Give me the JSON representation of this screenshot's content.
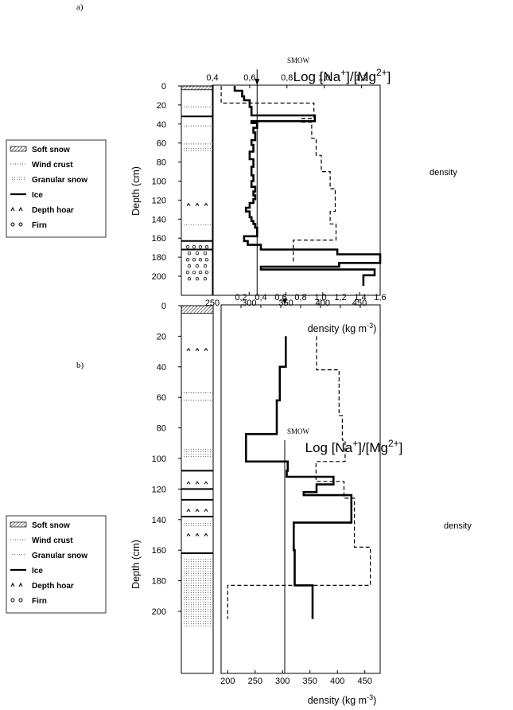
{
  "chart_data": [
    {
      "type": "line",
      "panel_label": "a)",
      "title_top": "Log [Na+]/[Mg2+]",
      "title_parts": {
        "a": "Log [Na",
        "b": "+",
        "c": "]/[Mg",
        "d": "2+",
        "e": "]"
      },
      "xlabel_bottom": {
        "a": "density (kg m",
        "b": "-3",
        "c": ")"
      },
      "ylabel": "Depth (cm)",
      "smow_label": "SMOW",
      "smow_value": 0.64,
      "top_axis": {
        "min": 0.4,
        "max": 1.3,
        "ticks": [
          "0,4",
          "0,6",
          "0,8",
          "1,0",
          "1,2"
        ],
        "tick_values": [
          0.4,
          0.6,
          0.8,
          1.0,
          1.2
        ]
      },
      "bottom_axis": {
        "min": 250,
        "max": 478,
        "ticks": [
          "250",
          "300",
          "350",
          "400",
          "450"
        ],
        "tick_values": [
          250,
          300,
          350,
          400,
          450
        ]
      },
      "y_axis": {
        "min": 0,
        "max": 210,
        "ticks": [
          "0",
          "20",
          "40",
          "60",
          "80",
          "100",
          "120",
          "140",
          "160",
          "180",
          "200"
        ],
        "tick_values": [
          0,
          20,
          40,
          60,
          80,
          100,
          120,
          140,
          160,
          180,
          200
        ]
      },
      "series": [
        {
          "label": "",
          "style": "solid",
          "axis": "top",
          "x": [
            0.52,
            0.52,
            0.56,
            0.56,
            0.57,
            0.57,
            0.6,
            0.6,
            0.61,
            0.61,
            0.95,
            0.95,
            0.61,
            0.61,
            0.64,
            0.64,
            0.62,
            0.62,
            0.63,
            0.63,
            0.61,
            0.61,
            0.62,
            0.62,
            0.6,
            0.6,
            0.62,
            0.62,
            0.61,
            0.61,
            0.62,
            0.62,
            0.61,
            0.61,
            0.63,
            0.63,
            0.62,
            0.62,
            0.63,
            0.63,
            0.62,
            0.62,
            0.6,
            0.6,
            0.58,
            0.58,
            0.6,
            0.6,
            0.61,
            0.61,
            0.62,
            0.62,
            0.63,
            0.63,
            0.64,
            0.64,
            0.57,
            0.57,
            0.59,
            0.59,
            0.66,
            0.66,
            1.07,
            1.07,
            1.3,
            1.3,
            1.08,
            1.08,
            0.66,
            0.66,
            1.27,
            1.27,
            1.21,
            1.21
          ],
          "y": [
            0,
            5,
            5,
            11,
            11,
            15,
            15,
            22,
            22,
            31,
            31,
            37,
            37,
            39,
            39,
            44,
            44,
            49,
            49,
            57,
            57,
            62,
            62,
            69,
            69,
            77,
            77,
            85,
            85,
            94,
            94,
            100,
            100,
            106,
            106,
            111,
            111,
            115,
            115,
            119,
            119,
            123,
            123,
            128,
            128,
            132,
            132,
            138,
            138,
            142,
            142,
            145,
            145,
            149,
            149,
            158,
            158,
            163,
            163,
            167,
            167,
            172,
            172,
            177,
            177,
            186,
            186,
            190,
            190,
            193,
            193,
            199,
            199,
            210
          ]
        },
        {
          "label": "density",
          "style": "dashed",
          "axis": "bottom",
          "x": [
            262,
            262,
            388,
            388,
            372,
            372,
            385,
            385,
            391,
            391,
            398,
            398,
            410,
            410,
            417,
            417,
            410,
            410,
            418,
            418,
            360,
            360
          ],
          "y": [
            0,
            18,
            18,
            34,
            34,
            38,
            38,
            55,
            55,
            73,
            73,
            90,
            90,
            108,
            108,
            132,
            132,
            145,
            145,
            162,
            162,
            185
          ]
        }
      ],
      "density_label": "density",
      "legend": [
        {
          "label": "Soft snow",
          "symbol": "hatch"
        },
        {
          "label": "Wind crust",
          "symbol": "dotted-line"
        },
        {
          "label": "Granular snow",
          "symbol": "stipple"
        },
        {
          "label": "Ice",
          "symbol": "thick-line"
        },
        {
          "label": "Depth hoar",
          "symbol": "carets"
        },
        {
          "label": "Firn",
          "symbol": "circles"
        }
      ],
      "stratigraphy": [
        {
          "type": "hatch",
          "y": [
            0,
            4
          ]
        },
        {
          "type": "dotted",
          "y": 22
        },
        {
          "type": "ice",
          "y": 32
        },
        {
          "type": "dotted",
          "y": 42
        },
        {
          "type": "dotted",
          "y": 61
        },
        {
          "type": "stipple",
          "y": [
            64,
            70
          ]
        },
        {
          "type": "hoar",
          "y": [
            118,
            128
          ]
        },
        {
          "type": "stipple",
          "y": [
            144,
            147
          ]
        },
        {
          "type": "ice",
          "y": 163
        },
        {
          "type": "circles",
          "y": [
            165,
            210
          ]
        },
        {
          "type": "ice",
          "y": 172
        }
      ]
    },
    {
      "type": "line",
      "panel_label": "b)",
      "title_top": "Log [Na+]/[Mg2+]",
      "title_parts": {
        "a": "Log [Na",
        "b": "+",
        "c": "]/[Mg",
        "d": "2+",
        "e": "]"
      },
      "xlabel_bottom": {
        "a": "density (kg m",
        "b": "-3",
        "c": ")"
      },
      "ylabel": "Depth (cm)",
      "smow_label": "SMOW",
      "smow_value": 0.64,
      "top_axis": {
        "min": 0.0,
        "max": 1.6,
        "ticks": [
          "0,2",
          "0,4",
          "0,6",
          "0,8",
          "1,0",
          "1,2",
          "1,4",
          "1,6"
        ],
        "tick_values": [
          0.2,
          0.4,
          0.6,
          0.8,
          1.0,
          1.2,
          1.4,
          1.6
        ],
        "first_tick_text": "0,2"
      },
      "bottom_axis": {
        "min": 188,
        "max": 478,
        "ticks": [
          "200",
          "250",
          "300",
          "350",
          "400",
          "450"
        ],
        "tick_values": [
          200,
          250,
          300,
          350,
          400,
          450
        ]
      },
      "y_axis": {
        "min": 0,
        "max": 210,
        "ticks": [
          "0",
          "20",
          "40",
          "60",
          "80",
          "100",
          "120",
          "140",
          "160",
          "180",
          "200"
        ],
        "tick_values": [
          0,
          20,
          40,
          60,
          80,
          100,
          120,
          140,
          160,
          180,
          200
        ]
      },
      "series": [
        {
          "label": "",
          "style": "solid",
          "axis": "top",
          "x": [
            0.65,
            0.65,
            0.59,
            0.59,
            0.56,
            0.56,
            0.25,
            0.25,
            0.67,
            0.67,
            0.66,
            0.66,
            1.13,
            1.13,
            0.96,
            0.96,
            0.83,
            0.83,
            1.31,
            1.31,
            0.73,
            0.73,
            0.74,
            0.74,
            0.92,
            0.92
          ],
          "y": [
            20,
            40,
            40,
            62,
            62,
            84,
            84,
            102,
            102,
            108,
            108,
            112,
            112,
            117,
            117,
            122,
            122,
            124,
            124,
            142,
            142,
            160,
            160,
            183,
            183,
            205
          ]
        },
        {
          "label": "density",
          "style": "dashed",
          "axis": "bottom",
          "x": [
            362,
            362,
            403,
            403,
            409,
            409,
            414,
            414,
            361,
            361,
            412,
            412,
            431,
            431,
            460,
            460,
            200,
            200
          ],
          "y": [
            20,
            42,
            42,
            72,
            72,
            88,
            88,
            102,
            102,
            115,
            115,
            126,
            126,
            158,
            158,
            183,
            183,
            205
          ]
        }
      ],
      "density_label": "density",
      "legend": [
        {
          "label": "Soft snow",
          "symbol": "hatch"
        },
        {
          "label": "Wind crust",
          "symbol": "dotted-line"
        },
        {
          "label": "Granular snow",
          "symbol": "stipple"
        },
        {
          "label": "Ice",
          "symbol": "thick-line"
        },
        {
          "label": "Depth hoar",
          "symbol": "carets"
        },
        {
          "label": "Firn",
          "symbol": "circles"
        }
      ],
      "stratigraphy": [
        {
          "type": "hatch",
          "y": [
            0,
            5
          ]
        },
        {
          "type": "hoar",
          "y": [
            28,
            30
          ]
        },
        {
          "type": "dotted",
          "y": 57
        },
        {
          "type": "dotted",
          "y": 62
        },
        {
          "type": "stipple",
          "y": [
            93,
            100
          ]
        },
        {
          "type": "ice",
          "y": 108
        },
        {
          "type": "hoar",
          "y": [
            112,
            118
          ]
        },
        {
          "type": "ice",
          "y": 120
        },
        {
          "type": "ice",
          "y": 127
        },
        {
          "type": "hoar",
          "y": [
            130,
            136
          ]
        },
        {
          "type": "ice",
          "y": 138
        },
        {
          "type": "stipple",
          "y": [
            141,
            145
          ]
        },
        {
          "type": "hoar",
          "y": [
            146,
            152
          ]
        },
        {
          "type": "ice",
          "y": 162
        },
        {
          "type": "stipple",
          "y": [
            165,
            210
          ]
        }
      ]
    }
  ]
}
